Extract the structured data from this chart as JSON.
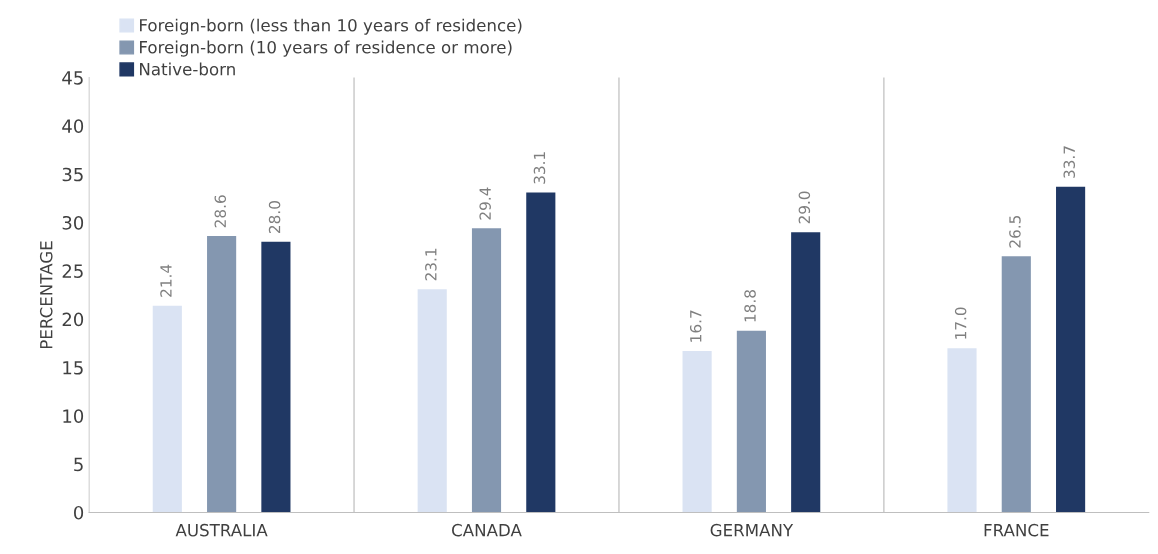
{
  "chart_data": {
    "type": "bar",
    "ylabel": "PERCENTAGE",
    "categories": [
      "AUSTRALIA",
      "CANADA",
      "GERMANY",
      "FRANCE"
    ],
    "series": [
      {
        "name": "Foreign-born (less than 10 years of residence)",
        "color": "#dae3f3",
        "values": [
          21.4,
          23.1,
          16.7,
          17.0
        ],
        "value_labels": [
          "21.4",
          "23.1",
          "16.7",
          "17.0"
        ]
      },
      {
        "name": "Foreign-born (10 years of residence or more)",
        "color": "#8497b0",
        "values": [
          28.6,
          29.4,
          18.8,
          26.5
        ],
        "value_labels": [
          "28.6",
          "29.4",
          "18.8",
          "26.5"
        ]
      },
      {
        "name": "Native-born",
        "color": "#203864",
        "values": [
          28.0,
          33.1,
          29.0,
          33.7
        ],
        "value_labels": [
          "28.0",
          "33.1",
          "29.0",
          "33.7"
        ]
      }
    ],
    "ylim": [
      0,
      45
    ],
    "yticks": [
      0,
      5,
      10,
      15,
      20,
      25,
      30,
      35,
      40,
      45
    ],
    "grid": "x",
    "legend": "top left"
  }
}
